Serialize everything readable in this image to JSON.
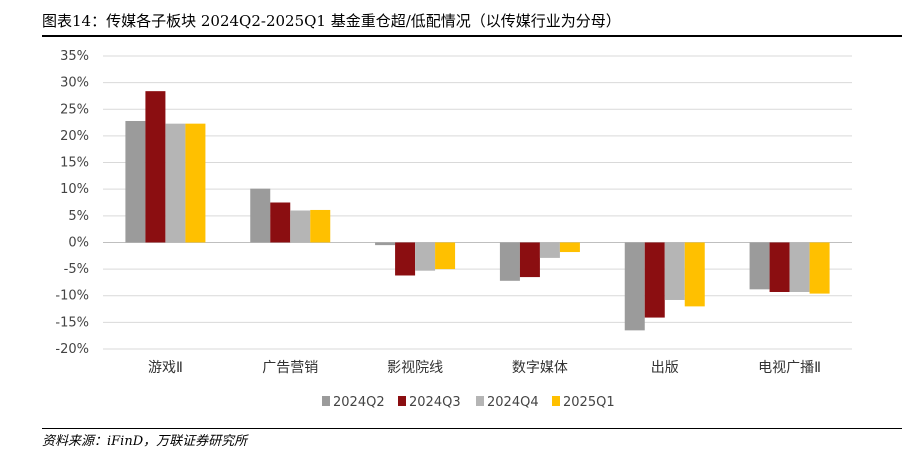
{
  "header": {
    "title": "图表14：传媒各子板块 2024Q2-2025Q1 基金重仓超/低配情况（以传媒行业为分母）"
  },
  "footer": {
    "source": "资料来源：iFinD，万联证券研究所"
  },
  "chart_data": {
    "type": "bar",
    "title": "",
    "xlabel": "",
    "ylabel": "",
    "ylim": [
      -20,
      35
    ],
    "yticks": [
      35,
      30,
      25,
      20,
      15,
      10,
      5,
      0,
      -5,
      -10,
      -15,
      -20
    ],
    "ytick_labels": [
      "35%",
      "30%",
      "25%",
      "20%",
      "15%",
      "10%",
      "5%",
      "0%",
      "-5%",
      "-10%",
      "-15%",
      "-20%"
    ],
    "grid": true,
    "legend_position": "bottom",
    "categories": [
      "游戏Ⅱ",
      "广告营销",
      "影视院线",
      "数字媒体",
      "出版",
      "电视广播Ⅱ"
    ],
    "series": [
      {
        "name": "2024Q2",
        "color": "#9b9b9b",
        "values": [
          22.8,
          10.1,
          -0.5,
          -7.2,
          -16.5,
          -8.8
        ]
      },
      {
        "name": "2024Q3",
        "color": "#8b0e11",
        "values": [
          28.4,
          7.5,
          -6.2,
          -6.5,
          -14.1,
          -9.3
        ]
      },
      {
        "name": "2024Q4",
        "color": "#b5b5b5",
        "values": [
          22.3,
          6.0,
          -5.3,
          -2.9,
          -10.8,
          -9.3
        ]
      },
      {
        "name": "2025Q1",
        "color": "#ffc000",
        "values": [
          22.3,
          6.1,
          -5.0,
          -1.8,
          -12.0,
          -9.6
        ]
      }
    ]
  }
}
